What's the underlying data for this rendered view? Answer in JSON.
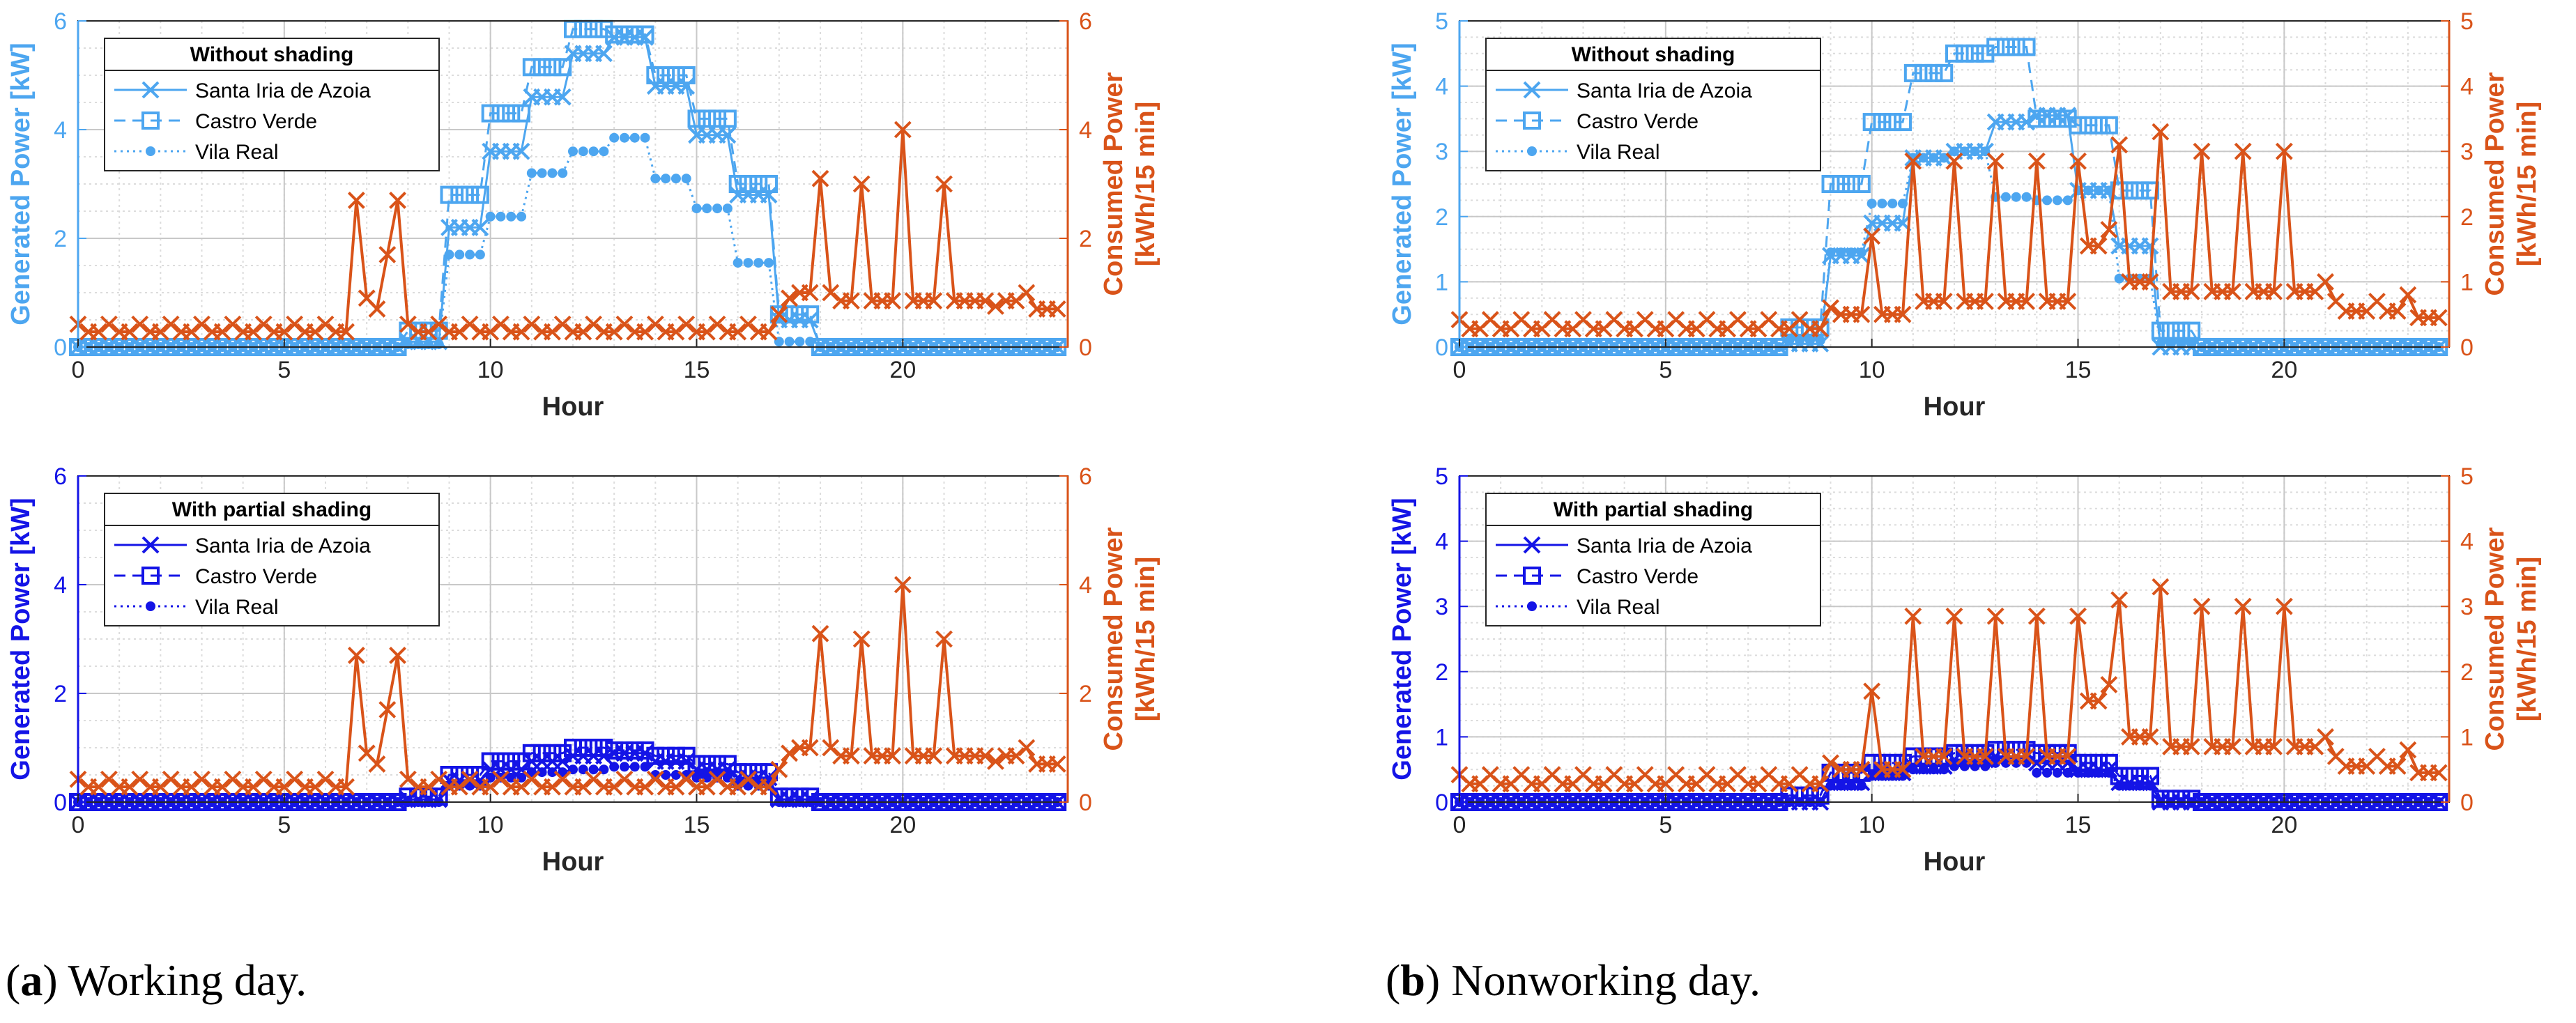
{
  "captions": [
    {
      "letter": "a",
      "rest": ") Working day.",
      "open": "("
    },
    {
      "letter": "b",
      "rest": ") Nonworking day.",
      "open": "("
    }
  ],
  "colors": {
    "consumed": "#D95319",
    "gen_light": "#4DA6F0",
    "gen_dark": "#1414E6",
    "grid": "#DCDCDC"
  },
  "chart_data": [
    {
      "id": "a-top",
      "type": "line",
      "title": "",
      "legend_title": "Without shading",
      "xlabel": "Hour",
      "ylabel_left": "Generated Power [kW]",
      "ylabel_right": [
        "Consumed Power",
        "[kWh/15 min]"
      ],
      "xlim": [
        0,
        24
      ],
      "xticks": [
        0,
        5,
        10,
        15,
        20
      ],
      "ylim_left": [
        0,
        6
      ],
      "ylim_right": [
        0,
        6
      ],
      "yticks_left": [
        0,
        2,
        4,
        6
      ],
      "yticks_right": [
        0,
        2,
        4,
        6
      ],
      "generation_color": "light",
      "series": [
        {
          "name": "Santa Iria de Azoia",
          "style": "solid",
          "marker": "x",
          "hourly": [
            0,
            0,
            0,
            0,
            0,
            0,
            0,
            0,
            0.1,
            2.2,
            3.6,
            4.6,
            5.4,
            5.7,
            4.8,
            3.9,
            2.8,
            0.5,
            0,
            0,
            0,
            0,
            0,
            0
          ]
        },
        {
          "name": "Castro Verde",
          "style": "dashed",
          "marker": "square",
          "hourly": [
            0,
            0,
            0,
            0,
            0,
            0,
            0,
            0,
            0.3,
            2.8,
            4.3,
            5.15,
            5.85,
            5.75,
            5.0,
            4.2,
            3.0,
            0.6,
            0,
            0,
            0,
            0,
            0,
            0
          ]
        },
        {
          "name": "Vila Real",
          "style": "dotted",
          "marker": "dot",
          "hourly": [
            0,
            0,
            0,
            0,
            0,
            0,
            0,
            0,
            0.05,
            1.7,
            2.4,
            3.2,
            3.6,
            3.85,
            3.1,
            2.55,
            1.55,
            0.1,
            0,
            0,
            0,
            0,
            0,
            0
          ]
        }
      ],
      "consumed": {
        "name": "Consumed Power",
        "values": [
          0.42,
          0.28,
          0.28,
          0.42,
          0.28,
          0.28,
          0.42,
          0.28,
          0.28,
          0.42,
          0.28,
          0.28,
          0.42,
          0.28,
          0.28,
          0.42,
          0.28,
          0.28,
          0.42,
          0.28,
          0.28,
          0.42,
          0.28,
          0.28,
          0.42,
          0.28,
          0.28,
          2.7,
          0.9,
          0.7,
          1.7,
          2.7,
          0.42,
          0.28,
          0.28,
          0.42,
          0.28,
          0.28,
          0.42,
          0.28,
          0.28,
          0.42,
          0.28,
          0.28,
          0.42,
          0.28,
          0.28,
          0.42,
          0.28,
          0.28,
          0.42,
          0.28,
          0.28,
          0.42,
          0.28,
          0.28,
          0.42,
          0.28,
          0.28,
          0.42,
          0.28,
          0.28,
          0.42,
          0.28,
          0.28,
          0.42,
          0.28,
          0.28,
          0.6,
          0.9,
          1.0,
          1.0,
          3.1,
          1.0,
          0.85,
          0.85,
          3.0,
          0.85,
          0.85,
          0.85,
          4.0,
          0.85,
          0.85,
          0.85,
          3.0,
          0.85,
          0.85,
          0.85,
          0.85,
          0.75,
          0.85,
          0.85,
          1.0,
          0.7,
          0.7,
          0.7
        ]
      }
    },
    {
      "id": "b-top",
      "type": "line",
      "title": "",
      "legend_title": "Without shading",
      "xlabel": "Hour",
      "ylabel_left": "Generated Power [kW]",
      "ylabel_right": [
        "Consumed Power",
        "[kWh/15 min]"
      ],
      "xlim": [
        0,
        24
      ],
      "xticks": [
        0,
        5,
        10,
        15,
        20
      ],
      "ylim_left": [
        0,
        5
      ],
      "ylim_right": [
        0,
        5
      ],
      "yticks_left": [
        0,
        1,
        2,
        3,
        4,
        5
      ],
      "yticks_right": [
        0,
        1,
        2,
        3,
        4,
        5
      ],
      "generation_color": "light",
      "series": [
        {
          "name": "Santa Iria de Azoia",
          "style": "solid",
          "marker": "x",
          "hourly": [
            0,
            0,
            0,
            0,
            0,
            0,
            0,
            0,
            0.05,
            1.4,
            1.9,
            2.9,
            3.0,
            3.45,
            3.55,
            2.4,
            1.55,
            0,
            0,
            0,
            0,
            0,
            0,
            0
          ]
        },
        {
          "name": "Castro Verde",
          "style": "dashed",
          "marker": "square",
          "hourly": [
            0,
            0,
            0,
            0,
            0,
            0,
            0,
            0,
            0.3,
            2.5,
            3.45,
            4.2,
            4.5,
            4.6,
            3.5,
            3.4,
            2.4,
            0.25,
            0,
            0,
            0,
            0,
            0,
            0
          ]
        },
        {
          "name": "Vila Real",
          "style": "dotted",
          "marker": "dot",
          "hourly": [
            0,
            0,
            0,
            0,
            0,
            0,
            0,
            0,
            0.1,
            1.45,
            2.2,
            2.9,
            3.0,
            2.3,
            2.25,
            2.4,
            1.05,
            0.05,
            0,
            0,
            0,
            0,
            0,
            0
          ]
        }
      ],
      "consumed": {
        "name": "Consumed Power",
        "values": [
          0.42,
          0.28,
          0.28,
          0.42,
          0.28,
          0.28,
          0.42,
          0.28,
          0.28,
          0.42,
          0.28,
          0.28,
          0.42,
          0.28,
          0.28,
          0.42,
          0.28,
          0.28,
          0.42,
          0.28,
          0.28,
          0.42,
          0.28,
          0.28,
          0.42,
          0.28,
          0.28,
          0.42,
          0.28,
          0.28,
          0.42,
          0.28,
          0.28,
          0.42,
          0.28,
          0.28,
          0.6,
          0.5,
          0.5,
          0.5,
          1.7,
          0.5,
          0.5,
          0.5,
          2.85,
          0.7,
          0.7,
          0.7,
          2.85,
          0.7,
          0.7,
          0.7,
          2.85,
          0.7,
          0.7,
          0.7,
          2.85,
          0.7,
          0.7,
          0.7,
          2.85,
          1.55,
          1.55,
          1.8,
          3.1,
          1.0,
          1.0,
          1.0,
          3.3,
          0.85,
          0.85,
          0.85,
          3.0,
          0.85,
          0.85,
          0.85,
          3.0,
          0.85,
          0.85,
          0.85,
          3.0,
          0.85,
          0.85,
          0.85,
          1.0,
          0.7,
          0.55,
          0.55,
          0.55,
          0.7,
          0.55,
          0.55,
          0.8,
          0.45,
          0.45,
          0.45
        ]
      }
    },
    {
      "id": "a-bottom",
      "type": "line",
      "title": "",
      "legend_title": "With partial shading",
      "xlabel": "Hour",
      "ylabel_left": "Generated Power [kW]",
      "ylabel_right": [
        "Consumed Power",
        "[kWh/15 min]"
      ],
      "xlim": [
        0,
        24
      ],
      "xticks": [
        0,
        5,
        10,
        15,
        20
      ],
      "ylim_left": [
        0,
        6
      ],
      "ylim_right": [
        0,
        6
      ],
      "yticks_left": [
        0,
        2,
        4,
        6
      ],
      "yticks_right": [
        0,
        2,
        4,
        6
      ],
      "generation_color": "dark",
      "series": [
        {
          "name": "Santa Iria de Azoia",
          "style": "solid",
          "marker": "x",
          "hourly": [
            0,
            0,
            0,
            0,
            0,
            0,
            0,
            0,
            0.05,
            0.4,
            0.6,
            0.75,
            0.85,
            0.9,
            0.75,
            0.6,
            0.45,
            0.05,
            0,
            0,
            0,
            0,
            0,
            0
          ]
        },
        {
          "name": "Castro Verde",
          "style": "dashed",
          "marker": "square",
          "hourly": [
            0,
            0,
            0,
            0,
            0,
            0,
            0,
            0,
            0.1,
            0.5,
            0.75,
            0.9,
            1.0,
            0.95,
            0.85,
            0.7,
            0.55,
            0.1,
            0,
            0,
            0,
            0,
            0,
            0
          ]
        },
        {
          "name": "Vila Real",
          "style": "dotted",
          "marker": "dot",
          "hourly": [
            0,
            0,
            0,
            0,
            0,
            0,
            0,
            0,
            0,
            0.3,
            0.45,
            0.55,
            0.6,
            0.65,
            0.5,
            0.45,
            0.3,
            0,
            0,
            0,
            0,
            0,
            0,
            0
          ]
        }
      ],
      "consumed": {
        "name": "Consumed Power",
        "values": [
          0.42,
          0.28,
          0.28,
          0.42,
          0.28,
          0.28,
          0.42,
          0.28,
          0.28,
          0.42,
          0.28,
          0.28,
          0.42,
          0.28,
          0.28,
          0.42,
          0.28,
          0.28,
          0.42,
          0.28,
          0.28,
          0.42,
          0.28,
          0.28,
          0.42,
          0.28,
          0.28,
          2.7,
          0.9,
          0.7,
          1.7,
          2.7,
          0.42,
          0.28,
          0.28,
          0.42,
          0.28,
          0.28,
          0.42,
          0.28,
          0.28,
          0.42,
          0.28,
          0.28,
          0.42,
          0.28,
          0.28,
          0.42,
          0.28,
          0.28,
          0.42,
          0.28,
          0.28,
          0.42,
          0.28,
          0.28,
          0.42,
          0.28,
          0.28,
          0.42,
          0.28,
          0.28,
          0.42,
          0.28,
          0.28,
          0.42,
          0.28,
          0.28,
          0.6,
          0.9,
          1.0,
          1.0,
          3.1,
          1.0,
          0.85,
          0.85,
          3.0,
          0.85,
          0.85,
          0.85,
          4.0,
          0.85,
          0.85,
          0.85,
          3.0,
          0.85,
          0.85,
          0.85,
          0.85,
          0.75,
          0.85,
          0.85,
          1.0,
          0.7,
          0.7,
          0.7
        ]
      }
    },
    {
      "id": "b-bottom",
      "type": "line",
      "title": "",
      "legend_title": "With partial shading",
      "xlabel": "Hour",
      "ylabel_left": "Generated Power [kW]",
      "ylabel_right": [
        "Consumed Power",
        "[kWh/15 min]"
      ],
      "xlim": [
        0,
        24
      ],
      "xticks": [
        0,
        5,
        10,
        15,
        20
      ],
      "ylim_left": [
        0,
        5
      ],
      "ylim_right": [
        0,
        5
      ],
      "yticks_left": [
        0,
        1,
        2,
        3,
        4,
        5
      ],
      "yticks_right": [
        0,
        1,
        2,
        3,
        4,
        5
      ],
      "generation_color": "dark",
      "series": [
        {
          "name": "Santa Iria de Azoia",
          "style": "solid",
          "marker": "x",
          "hourly": [
            0,
            0,
            0,
            0,
            0,
            0,
            0,
            0,
            0,
            0.3,
            0.45,
            0.55,
            0.65,
            0.7,
            0.6,
            0.5,
            0.3,
            0,
            0,
            0,
            0,
            0,
            0,
            0
          ]
        },
        {
          "name": "Castro Verde",
          "style": "dashed",
          "marker": "square",
          "hourly": [
            0,
            0,
            0,
            0,
            0,
            0,
            0,
            0,
            0.1,
            0.45,
            0.6,
            0.7,
            0.75,
            0.8,
            0.75,
            0.6,
            0.4,
            0.05,
            0,
            0,
            0,
            0,
            0,
            0
          ]
        },
        {
          "name": "Vila Real",
          "style": "dotted",
          "marker": "dot",
          "hourly": [
            0,
            0,
            0,
            0,
            0,
            0,
            0,
            0,
            0,
            0.25,
            0.4,
            0.5,
            0.55,
            0.6,
            0.45,
            0.45,
            0.25,
            0,
            0,
            0,
            0,
            0,
            0,
            0
          ]
        }
      ],
      "consumed": {
        "name": "Consumed Power",
        "values": [
          0.42,
          0.28,
          0.28,
          0.42,
          0.28,
          0.28,
          0.42,
          0.28,
          0.28,
          0.42,
          0.28,
          0.28,
          0.42,
          0.28,
          0.28,
          0.42,
          0.28,
          0.28,
          0.42,
          0.28,
          0.28,
          0.42,
          0.28,
          0.28,
          0.42,
          0.28,
          0.28,
          0.42,
          0.28,
          0.28,
          0.42,
          0.28,
          0.28,
          0.42,
          0.28,
          0.28,
          0.6,
          0.5,
          0.5,
          0.5,
          1.7,
          0.5,
          0.5,
          0.5,
          2.85,
          0.7,
          0.7,
          0.7,
          2.85,
          0.7,
          0.7,
          0.7,
          2.85,
          0.7,
          0.7,
          0.7,
          2.85,
          0.7,
          0.7,
          0.7,
          2.85,
          1.55,
          1.55,
          1.8,
          3.1,
          1.0,
          1.0,
          1.0,
          3.3,
          0.85,
          0.85,
          0.85,
          3.0,
          0.85,
          0.85,
          0.85,
          3.0,
          0.85,
          0.85,
          0.85,
          3.0,
          0.85,
          0.85,
          0.85,
          1.0,
          0.7,
          0.55,
          0.55,
          0.55,
          0.7,
          0.55,
          0.55,
          0.8,
          0.45,
          0.45,
          0.45
        ]
      }
    }
  ]
}
